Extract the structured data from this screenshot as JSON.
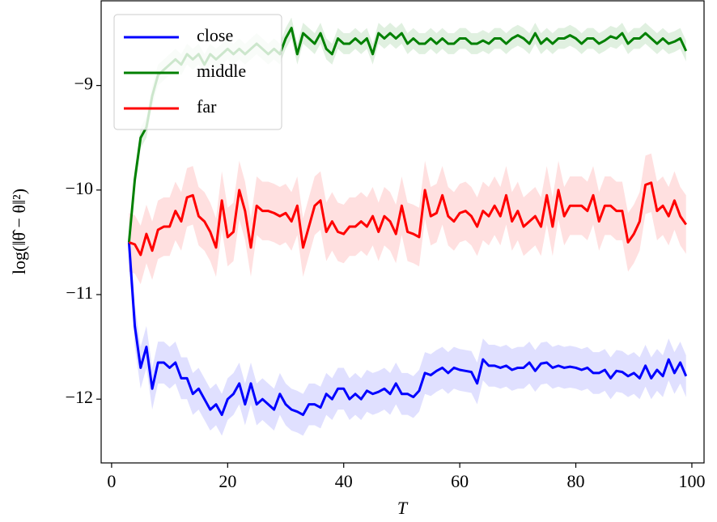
{
  "chart_data": {
    "type": "line",
    "xlabel": "T",
    "ylabel": "log(‖θ̂ − θ‖²)",
    "x": [
      3,
      4,
      5,
      6,
      7,
      8,
      9,
      10,
      11,
      12,
      13,
      14,
      15,
      16,
      17,
      18,
      19,
      20,
      21,
      22,
      23,
      24,
      25,
      26,
      27,
      28,
      29,
      30,
      31,
      32,
      33,
      34,
      35,
      36,
      37,
      38,
      39,
      40,
      41,
      42,
      43,
      44,
      45,
      46,
      47,
      48,
      49,
      50,
      51,
      52,
      53,
      54,
      55,
      56,
      57,
      58,
      59,
      60,
      61,
      62,
      63,
      64,
      65,
      66,
      67,
      68,
      69,
      70,
      71,
      72,
      73,
      74,
      75,
      76,
      77,
      78,
      79,
      80,
      81,
      82,
      83,
      84,
      85,
      86,
      87,
      88,
      89,
      90,
      91,
      92,
      93,
      94,
      95,
      96,
      97,
      98,
      99
    ],
    "series": [
      {
        "name": "close",
        "color": "#0000ff",
        "error": 0.2,
        "values": [
          -10.5,
          -11.3,
          -11.7,
          -11.5,
          -11.9,
          -11.65,
          -11.65,
          -11.7,
          -11.65,
          -11.8,
          -11.8,
          -11.95,
          -11.9,
          -12.0,
          -12.1,
          -12.05,
          -12.15,
          -12.0,
          -11.95,
          -11.85,
          -12.05,
          -11.85,
          -12.05,
          -12.0,
          -12.05,
          -12.1,
          -11.95,
          -12.05,
          -12.1,
          -12.12,
          -12.15,
          -12.05,
          -12.05,
          -12.08,
          -11.95,
          -12.0,
          -11.9,
          -11.9,
          -12.0,
          -11.95,
          -12.0,
          -11.92,
          -11.95,
          -11.93,
          -11.9,
          -11.95,
          -11.85,
          -11.95,
          -11.95,
          -11.98,
          -11.92,
          -11.75,
          -11.77,
          -11.73,
          -11.7,
          -11.75,
          -11.7,
          -11.72,
          -11.73,
          -11.74,
          -11.85,
          -11.62,
          -11.68,
          -11.68,
          -11.7,
          -11.68,
          -11.72,
          -11.7,
          -11.7,
          -11.65,
          -11.73,
          -11.66,
          -11.65,
          -11.7,
          -11.68,
          -11.7,
          -11.69,
          -11.7,
          -11.72,
          -11.7,
          -11.75,
          -11.75,
          -11.72,
          -11.8,
          -11.73,
          -11.74,
          -11.78,
          -11.75,
          -11.8,
          -11.68,
          -11.8,
          -11.72,
          -11.78,
          -11.62,
          -11.75,
          -11.65,
          -11.78
        ]
      },
      {
        "name": "middle",
        "color": "#008000",
        "error": 0.1,
        "values": [
          -10.5,
          -9.9,
          -9.5,
          -9.4,
          -9.1,
          -8.9,
          -8.85,
          -8.8,
          -8.75,
          -8.8,
          -8.7,
          -8.75,
          -8.7,
          -8.8,
          -8.7,
          -8.75,
          -8.7,
          -8.65,
          -8.7,
          -8.65,
          -8.7,
          -8.65,
          -8.6,
          -8.65,
          -8.7,
          -8.65,
          -8.7,
          -8.55,
          -8.45,
          -8.7,
          -8.5,
          -8.55,
          -8.6,
          -8.5,
          -8.65,
          -8.7,
          -8.55,
          -8.6,
          -8.6,
          -8.55,
          -8.6,
          -8.55,
          -8.7,
          -8.5,
          -8.55,
          -8.5,
          -8.55,
          -8.5,
          -8.6,
          -8.55,
          -8.6,
          -8.6,
          -8.55,
          -8.6,
          -8.55,
          -8.6,
          -8.6,
          -8.55,
          -8.55,
          -8.6,
          -8.6,
          -8.57,
          -8.6,
          -8.55,
          -8.55,
          -8.6,
          -8.55,
          -8.52,
          -8.55,
          -8.6,
          -8.5,
          -8.6,
          -8.55,
          -8.6,
          -8.55,
          -8.55,
          -8.52,
          -8.55,
          -8.6,
          -8.55,
          -8.55,
          -8.6,
          -8.57,
          -8.53,
          -8.55,
          -8.5,
          -8.6,
          -8.55,
          -8.55,
          -8.5,
          -8.55,
          -8.6,
          -8.55,
          -8.6,
          -8.58,
          -8.55,
          -8.67
        ]
      },
      {
        "name": "far",
        "color": "#ff0000",
        "error": 0.28,
        "values": [
          -10.5,
          -10.52,
          -10.62,
          -10.42,
          -10.58,
          -10.38,
          -10.35,
          -10.35,
          -10.2,
          -10.3,
          -10.07,
          -10.05,
          -10.25,
          -10.3,
          -10.4,
          -10.55,
          -10.1,
          -10.45,
          -10.4,
          -10.0,
          -10.2,
          -10.55,
          -10.15,
          -10.2,
          -10.2,
          -10.22,
          -10.25,
          -10.22,
          -10.3,
          -10.15,
          -10.55,
          -10.35,
          -10.15,
          -10.1,
          -10.4,
          -10.3,
          -10.4,
          -10.42,
          -10.35,
          -10.35,
          -10.3,
          -10.35,
          -10.25,
          -10.4,
          -10.25,
          -10.3,
          -10.42,
          -10.15,
          -10.4,
          -10.42,
          -10.45,
          -10.0,
          -10.25,
          -10.22,
          -10.05,
          -10.25,
          -10.3,
          -10.22,
          -10.2,
          -10.25,
          -10.35,
          -10.2,
          -10.25,
          -10.15,
          -10.25,
          -10.05,
          -10.3,
          -10.2,
          -10.35,
          -10.3,
          -10.25,
          -10.35,
          -10.05,
          -10.35,
          -10.0,
          -10.25,
          -10.15,
          -10.15,
          -10.15,
          -10.2,
          -10.05,
          -10.3,
          -10.15,
          -10.15,
          -10.2,
          -10.2,
          -10.5,
          -10.42,
          -10.3,
          -9.95,
          -9.93,
          -10.2,
          -10.15,
          -10.25,
          -10.1,
          -10.25,
          -10.33
        ]
      }
    ],
    "xlim": [
      -1.8,
      102.1
    ],
    "ylim": [
      -12.61,
      -8.19
    ],
    "xticks": [
      0,
      20,
      40,
      60,
      80,
      100
    ],
    "yticks": [
      {
        "value": -12,
        "label": "−12"
      },
      {
        "value": -11,
        "label": "−11"
      },
      {
        "value": -10,
        "label": "−10"
      },
      {
        "value": -9,
        "label": "−9"
      }
    ],
    "legend": "upper left"
  }
}
